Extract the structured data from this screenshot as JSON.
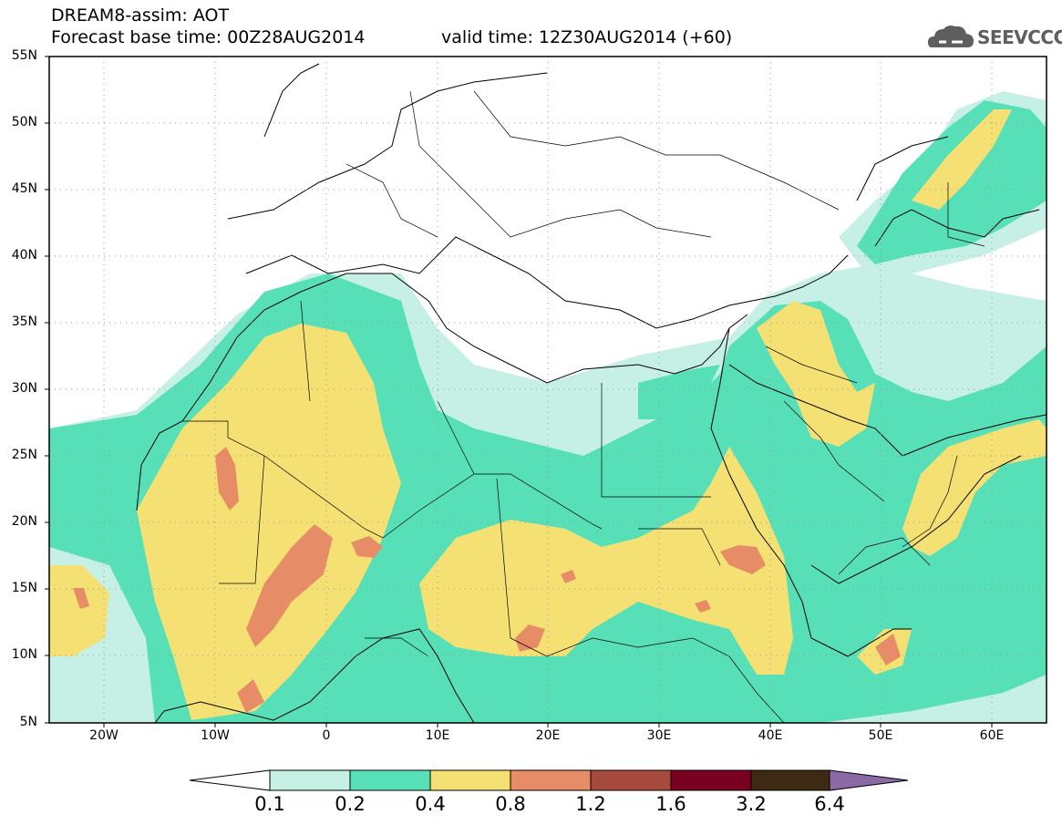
{
  "header": {
    "title": "DREAM8-assim: AOT",
    "base_time": "Forecast base time: 00Z28AUG2014",
    "valid_time": "valid time: 12Z30AUG2014 (+60)"
  },
  "logo": {
    "text": "SEEVCCC",
    "icon": "cloud-icon",
    "color": "#5e5e5e"
  },
  "map": {
    "lat_labels": [
      "55N",
      "50N",
      "45N",
      "40N",
      "35N",
      "30N",
      "25N",
      "20N",
      "15N",
      "10N",
      "5N"
    ],
    "lon_labels": [
      "20W",
      "10W",
      "0",
      "10E",
      "20E",
      "30E",
      "40E",
      "50E",
      "60E"
    ]
  },
  "colorbar": {
    "labels": [
      "0.1",
      "0.2",
      "0.4",
      "0.8",
      "1.2",
      "1.6",
      "3.2",
      "6.4"
    ],
    "colors": [
      "#ffffff",
      "#c6efe6",
      "#57dfb8",
      "#f5e173",
      "#e68d68",
      "#a54a3c",
      "#7a0022",
      "#3e2a14",
      "#8b69a5"
    ]
  }
}
